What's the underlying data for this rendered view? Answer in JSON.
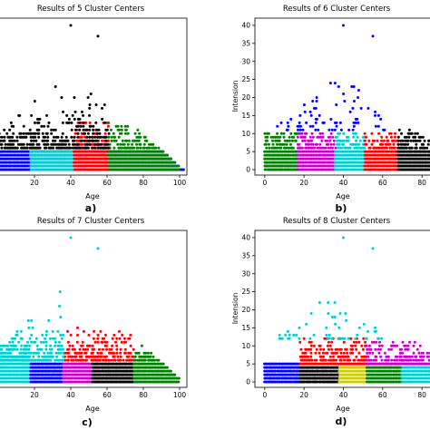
{
  "chart_data": [
    {
      "type": "scatter",
      "title": "Results of 5 Cluster Centers",
      "xlabel": "Age",
      "ylabel": "",
      "panel_label": "a)",
      "xlim": [
        0,
        104
      ],
      "ylim": [
        -1.5,
        42
      ],
      "xticks": [
        20,
        40,
        60,
        80,
        100
      ],
      "yticks": [],
      "clusters": [
        {
          "color": "#0000ff",
          "x": [
            0,
            104
          ],
          "y": [
            0,
            5
          ]
        },
        {
          "color": "#00cfcf",
          "x": [
            18,
            42
          ],
          "y": [
            0,
            5
          ]
        },
        {
          "color": "#ff0000",
          "x": [
            42,
            61
          ],
          "y": [
            0,
            13
          ]
        },
        {
          "color": "#008000",
          "x": [
            61,
            100
          ],
          "y": [
            0,
            13
          ]
        },
        {
          "color": "#000000",
          "x": [
            0,
            61
          ],
          "y": [
            6,
            40
          ]
        }
      ],
      "highlight_points": [
        {
          "x": 40,
          "y": 40,
          "color": "#000000"
        },
        {
          "x": 55,
          "y": 37,
          "color": "#000000"
        }
      ]
    },
    {
      "type": "scatter",
      "title": "Results of 6 Cluster Centers",
      "xlabel": "Age",
      "ylabel": "Intension",
      "panel_label": "b)",
      "xlim": [
        -5,
        85
      ],
      "ylim": [
        -1.5,
        42
      ],
      "xticks": [
        0,
        20,
        40,
        60,
        80
      ],
      "xtick_labels": [
        "0",
        "20",
        "40",
        "60",
        "80"
      ],
      "yticks": [
        0,
        5,
        10,
        15,
        20,
        25,
        30,
        35,
        40
      ],
      "clusters": [
        {
          "color": "#008000",
          "x": [
            0,
            17
          ],
          "y": [
            0,
            10
          ]
        },
        {
          "color": "#cc00cc",
          "x": [
            17,
            36
          ],
          "y": [
            0,
            10
          ]
        },
        {
          "color": "#00cfcf",
          "x": [
            36,
            51
          ],
          "y": [
            0,
            10
          ]
        },
        {
          "color": "#ff0000",
          "x": [
            51,
            68
          ],
          "y": [
            0,
            10
          ]
        },
        {
          "color": "#000000",
          "x": [
            68,
            85
          ],
          "y": [
            0,
            12
          ]
        },
        {
          "color": "#0000ff",
          "x": [
            0,
            62
          ],
          "y": [
            11,
            40
          ]
        }
      ],
      "highlight_points": [
        {
          "x": 40,
          "y": 40,
          "color": "#0000ff"
        },
        {
          "x": 55,
          "y": 37,
          "color": "#0000ff"
        }
      ]
    },
    {
      "type": "scatter",
      "title": "Results of 7 Cluster Centers",
      "xlabel": "Age",
      "ylabel": "",
      "panel_label": "c)",
      "xlim": [
        0,
        104
      ],
      "ylim": [
        -1.5,
        42
      ],
      "xticks": [
        20,
        40,
        60,
        80,
        100
      ],
      "yticks": [],
      "clusters": [
        {
          "color": "#00cfcf",
          "x": [
            0,
            18
          ],
          "y": [
            0,
            10
          ]
        },
        {
          "color": "#0000ff",
          "x": [
            18,
            36
          ],
          "y": [
            0,
            5
          ]
        },
        {
          "color": "#cc00cc",
          "x": [
            36,
            52
          ],
          "y": [
            0,
            5
          ]
        },
        {
          "color": "#000000",
          "x": [
            52,
            75
          ],
          "y": [
            0,
            5
          ]
        },
        {
          "color": "#008000",
          "x": [
            75,
            100
          ],
          "y": [
            0,
            11
          ]
        },
        {
          "color": "#ff0000",
          "x": [
            36,
            75
          ],
          "y": [
            6,
            15
          ]
        },
        {
          "color": "#00cfcf",
          "x": [
            0,
            36
          ],
          "y": [
            6,
            40
          ]
        }
      ],
      "highlight_points": [
        {
          "x": 40,
          "y": 40,
          "color": "#00cfcf"
        },
        {
          "x": 55,
          "y": 37,
          "color": "#00cfcf"
        }
      ]
    },
    {
      "type": "scatter",
      "title": "Results of 8 Cluster Centers",
      "xlabel": "Age",
      "ylabel": "Intension",
      "panel_label": "d)",
      "xlim": [
        -5,
        85
      ],
      "ylim": [
        -1.5,
        42
      ],
      "xticks": [
        0,
        20,
        40,
        60,
        80
      ],
      "xtick_labels": [
        "0",
        "20",
        "40",
        "60",
        "80"
      ],
      "yticks": [
        0,
        5,
        10,
        15,
        20,
        25,
        30,
        35,
        40
      ],
      "clusters": [
        {
          "color": "#0000ff",
          "x": [
            0,
            18
          ],
          "y": [
            0,
            5
          ]
        },
        {
          "color": "#000000",
          "x": [
            18,
            38
          ],
          "y": [
            0,
            4
          ]
        },
        {
          "color": "#cccc00",
          "x": [
            38,
            52
          ],
          "y": [
            0,
            5
          ]
        },
        {
          "color": "#008000",
          "x": [
            52,
            70
          ],
          "y": [
            0,
            5
          ]
        },
        {
          "color": "#00cfcf",
          "x": [
            70,
            85
          ],
          "y": [
            0,
            5
          ]
        },
        {
          "color": "#ff0000",
          "x": [
            18,
            52
          ],
          "y": [
            5,
            12
          ]
        },
        {
          "color": "#cc00cc",
          "x": [
            52,
            85
          ],
          "y": [
            5,
            12
          ]
        },
        {
          "color": "#00cfcf",
          "x": [
            0,
            60
          ],
          "y": [
            12,
            40
          ]
        }
      ],
      "highlight_points": [
        {
          "x": 40,
          "y": 40,
          "color": "#00cfcf"
        },
        {
          "x": 55,
          "y": 37,
          "color": "#00cfcf"
        }
      ]
    }
  ]
}
